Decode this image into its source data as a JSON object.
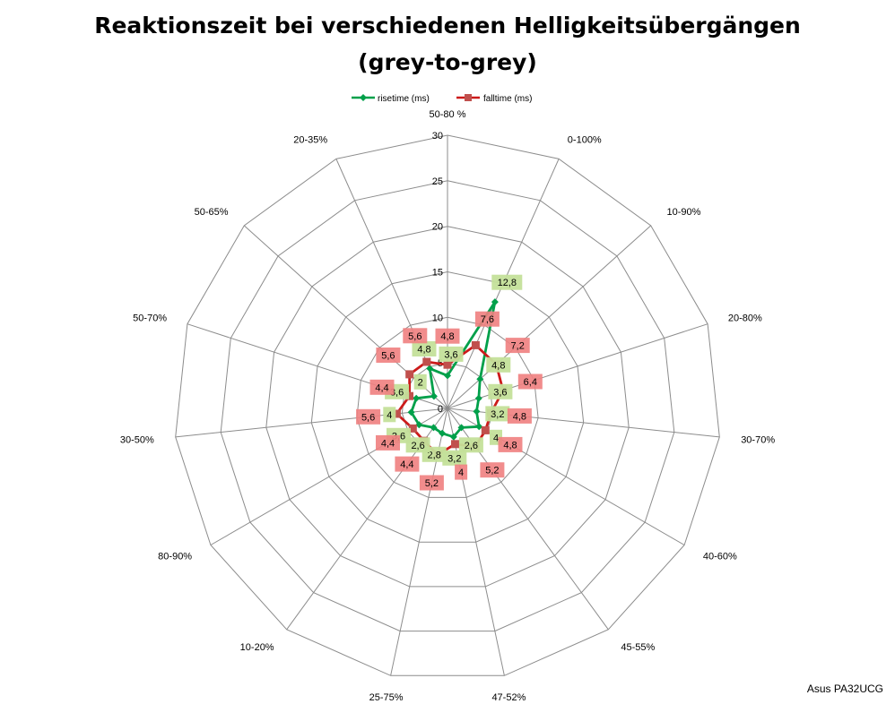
{
  "chart_data": {
    "type": "radar",
    "title_lines": [
      "Reaktionszeit bei verschiedenen Helligkeitsübergängen",
      "(grey-to-grey)"
    ],
    "categories": [
      "50-80 %",
      "0-100%",
      "10-90%",
      "20-80%",
      "30-70%",
      "40-60%",
      "45-55%",
      "47-52%",
      "25-75%",
      "10-20%",
      "80-90%",
      "30-50%",
      "50-70%",
      "50-65%",
      "20-35%"
    ],
    "rlim": [
      0,
      30
    ],
    "rticks": [
      "0",
      "5",
      "10",
      "15",
      "20",
      "25",
      "30"
    ],
    "grid": true,
    "legend_position": "top",
    "series": [
      {
        "name": "risetime (ms)",
        "color": "#00a04a",
        "marker": "diamond",
        "values": [
          3.6,
          12.8,
          4.8,
          3.6,
          3.2,
          4,
          2.6,
          3.2,
          2.8,
          2.6,
          3.6,
          4,
          3.6,
          2,
          4.8
        ],
        "labels": [
          "3,6",
          "12,8",
          "4,8",
          "3,6",
          "3,2",
          "4",
          "2,6",
          "3,2",
          "2,8",
          "2,6",
          "3,6",
          "4",
          "3,6",
          "2",
          "4,8"
        ],
        "label_bg": "#c4e09a"
      },
      {
        "name": "falltime (ms)",
        "color": "#cc1a1a",
        "marker": "square",
        "values": [
          4.8,
          7.6,
          7.2,
          6.4,
          4.8,
          4.8,
          5.2,
          4,
          5.2,
          4.4,
          4.4,
          5.6,
          4.4,
          5.6,
          5.6
        ],
        "labels": [
          "4,8",
          "7,6",
          "7,2",
          "6,4",
          "4,8",
          "4,8",
          "5,2",
          "4",
          "5,2",
          "4,4",
          "4,4",
          "5,6",
          "4,4",
          "5,6",
          "5,6"
        ],
        "label_bg": "#f08080"
      }
    ]
  },
  "footer": "Asus PA32UCG"
}
